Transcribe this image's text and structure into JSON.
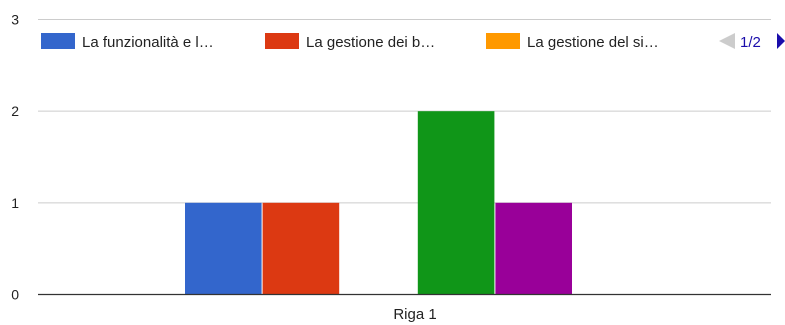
{
  "chart_data": {
    "type": "bar",
    "categories": [
      "Riga 1"
    ],
    "ylim": [
      0,
      3
    ],
    "yticks": [
      0,
      1,
      2,
      3
    ],
    "grid": true,
    "legend_position": "top",
    "series": [
      {
        "name": "La funzionalità e l…",
        "color": "#3366cc",
        "values": [
          1
        ]
      },
      {
        "name": "La gestione dei b…",
        "color": "#dc3912",
        "values": [
          1
        ]
      },
      {
        "name": "La gestione del si…",
        "color": "#ff9900",
        "values": [
          0
        ]
      },
      {
        "name": "",
        "color": "#109618",
        "values": [
          2
        ]
      },
      {
        "name": "",
        "color": "#990099",
        "values": [
          1
        ]
      }
    ],
    "xlabel": "",
    "ylabel": ""
  },
  "legend": {
    "pager": "1/2",
    "prev_icon": "triangle-left-icon",
    "next_icon": "triangle-right-icon",
    "disabled_color": "#cccccc",
    "active_color": "#1a0dab"
  }
}
